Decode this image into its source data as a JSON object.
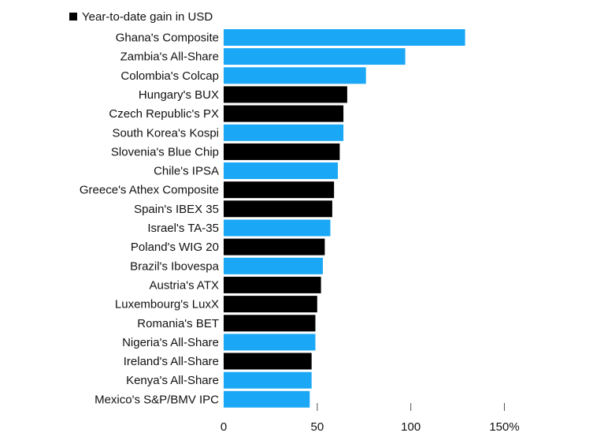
{
  "chart_data": {
    "type": "bar",
    "orientation": "horizontal",
    "legend": {
      "label": "Year-to-date gain in USD",
      "color": "#000000",
      "placement": "top-left"
    },
    "categories": [
      "Ghana's Composite",
      "Zambia's All-Share",
      "Colombia's Colcap",
      "Hungary's BUX",
      "Czech Republic's PX",
      "South Korea's Kospi",
      "Slovenia's Blue Chip",
      "Chile's IPSA",
      "Greece's Athex Composite",
      "Spain's IBEX 35",
      "Israel's TA-35",
      "Poland's WIG 20",
      "Brazil's Ibovespa",
      "Austria's ATX",
      "Luxembourg's LuxX",
      "Romania's BET",
      "Nigeria's All-Share",
      "Ireland's All-Share",
      "Kenya's All-Share",
      "Mexico's S&P/BMV IPC"
    ],
    "values": [
      129,
      97,
      76,
      66,
      64,
      64,
      62,
      61,
      59,
      58,
      57,
      54,
      53,
      52,
      50,
      49,
      49,
      47,
      47,
      46
    ],
    "highlighted": [
      true,
      true,
      true,
      false,
      false,
      true,
      false,
      true,
      false,
      false,
      true,
      false,
      true,
      false,
      false,
      false,
      true,
      false,
      true,
      true
    ],
    "colors": {
      "highlight": "#1aa7f5",
      "default": "#000000"
    },
    "x_ticks": [
      "0",
      "50",
      "100",
      "150%"
    ],
    "x_tick_values": [
      0,
      50,
      100,
      150
    ],
    "xlim": [
      0,
      150
    ],
    "grid": false
  }
}
